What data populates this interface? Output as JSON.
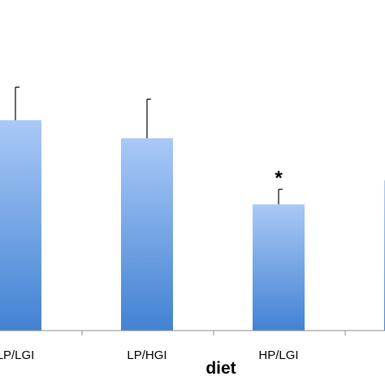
{
  "chart_data": {
    "type": "bar",
    "title": "",
    "xlabel": "diet",
    "ylabel": "",
    "categories": [
      "LP/LGI",
      "LP/HGI",
      "HP/LGI",
      ""
    ],
    "values": [
      3.5,
      3.2,
      2.1,
      2.5
    ],
    "error": [
      0.55,
      0.65,
      0.25,
      0
    ],
    "annotations": [
      "",
      "",
      "*",
      ""
    ],
    "ylim": [
      0,
      7
    ],
    "grid": false,
    "legend": "none",
    "colors": {
      "bar_top": "#a9c9f7",
      "bar_bottom": "#4282d3",
      "axis": "#8c8c8c",
      "error_bar": "#000000"
    }
  }
}
